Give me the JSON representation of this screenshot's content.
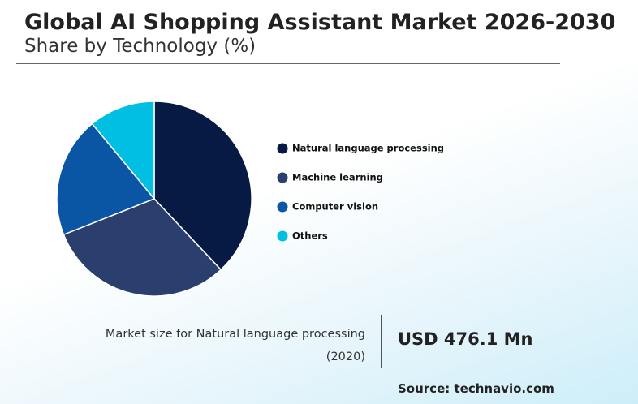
{
  "chart_data": {
    "type": "pie",
    "title": "Global AI Shopping Assistant Market 2026-2030",
    "subtitle": "Share by Technology (%)",
    "categories": [
      "Natural language processing",
      "Machine learning",
      "Computer vision",
      "Others"
    ],
    "values": [
      38,
      31,
      20,
      11
    ],
    "colors": [
      "#061a44",
      "#2a3f6e",
      "#0a56a4",
      "#00bfe2"
    ],
    "legend": "right"
  },
  "market_size": {
    "label": "Market size for Natural language processing",
    "year": "(2020)",
    "value": "USD 476.1 Mn"
  },
  "source": "Source: technavio.com"
}
